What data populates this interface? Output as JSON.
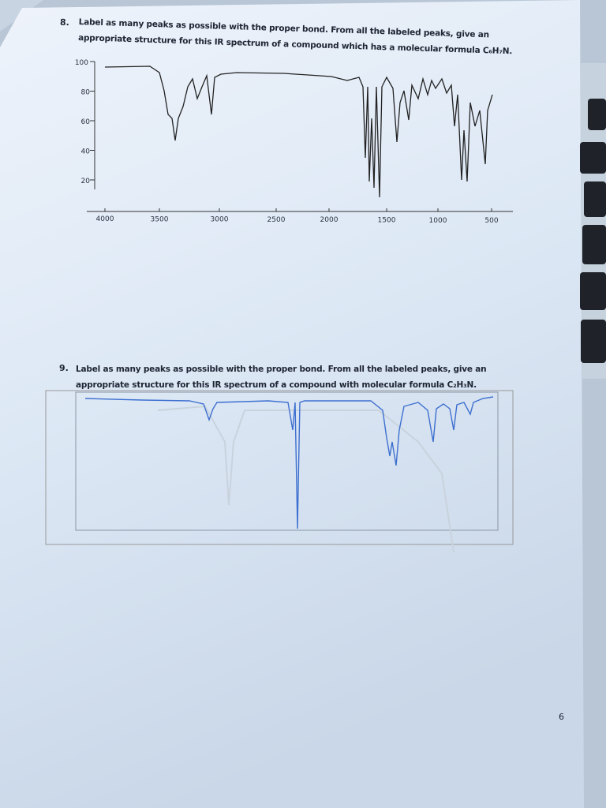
{
  "questions": [
    {
      "number": "8.",
      "text": "Label as many peaks as possible with the proper bond. From all the labeled peaks, give an appropriate structure for this IR spectrum of a compound which has a molecular formula C₆H₇N.",
      "y_ticks": [
        "100",
        "80",
        "60",
        "40",
        "20"
      ],
      "x_ticks": [
        "4000",
        "3500",
        "3000",
        "2500",
        "2000",
        "1500",
        "1000",
        "500"
      ]
    },
    {
      "number": "9.",
      "text": "Label as many peaks as possible with the proper bond. From all the labeled peaks, give an appropriate structure for this IR spectrum of a compound with molecular formula C₂H₃N."
    }
  ],
  "page_number": "6"
}
